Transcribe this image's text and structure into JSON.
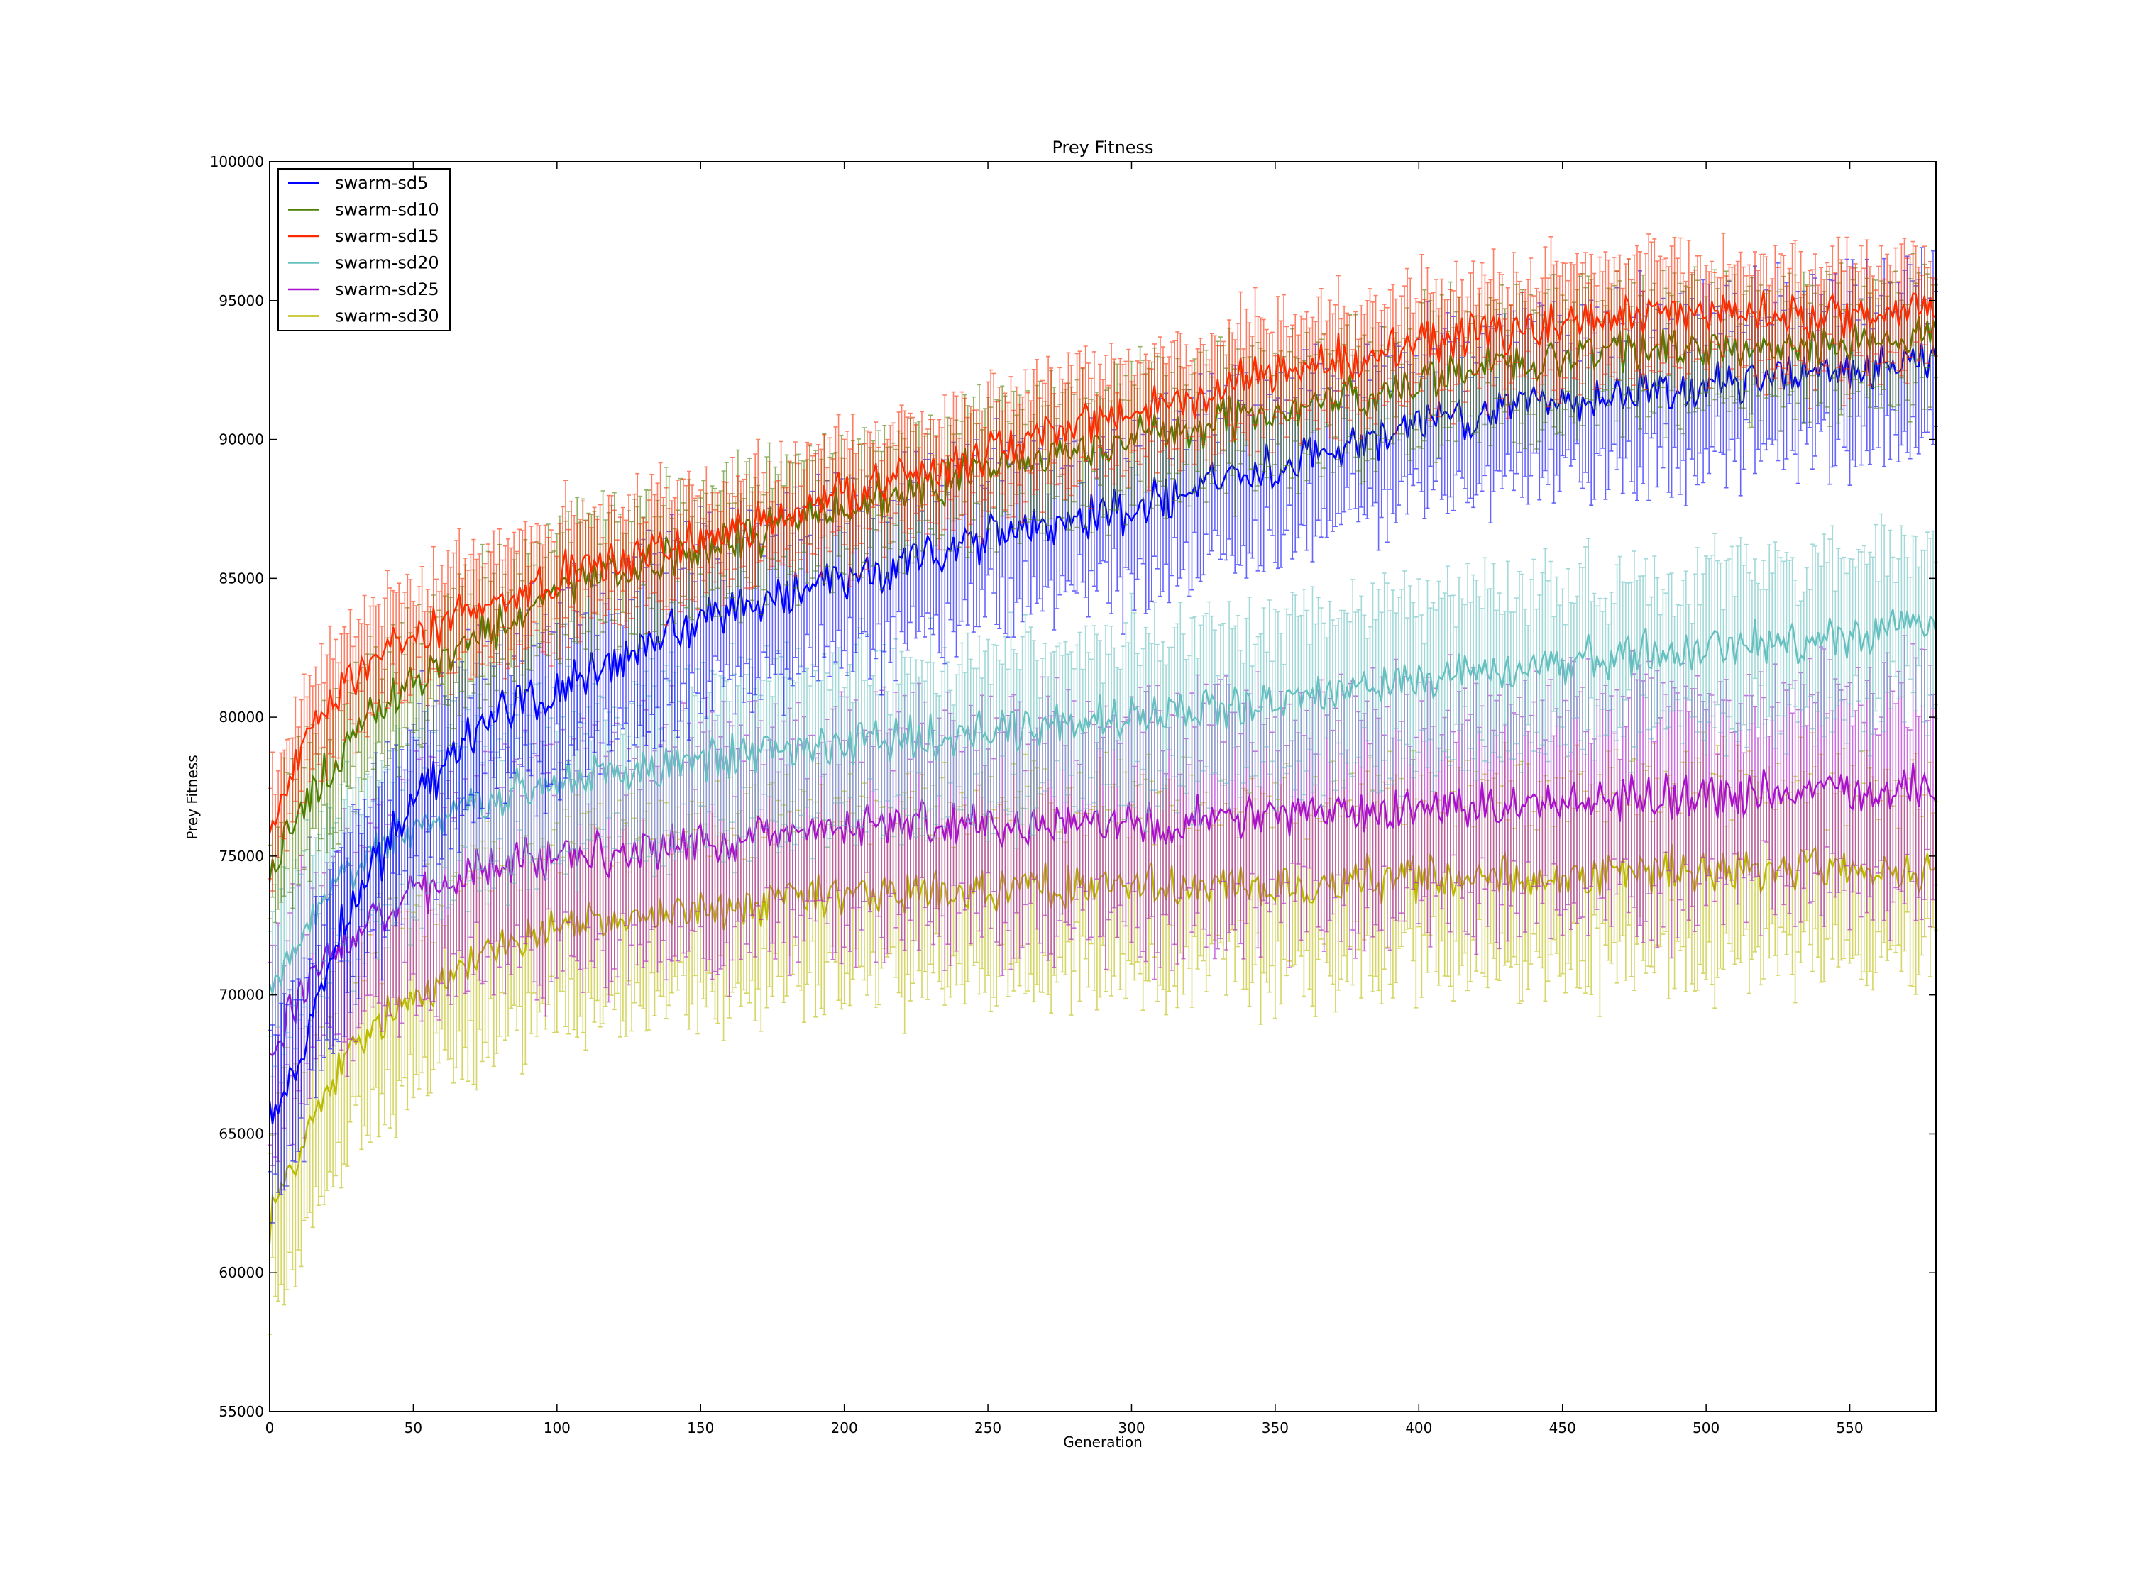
{
  "chart_data": {
    "type": "line",
    "title": "Prey Fitness",
    "xlabel": "Generation",
    "ylabel": "Prey Fitness",
    "xlim": [
      0,
      580
    ],
    "ylim": [
      55000,
      100000
    ],
    "xticks": [
      "0",
      "50",
      "100",
      "150",
      "200",
      "250",
      "300",
      "350",
      "400",
      "450",
      "500",
      "550"
    ],
    "yticks": [
      "55000",
      "60000",
      "65000",
      "70000",
      "75000",
      "80000",
      "85000",
      "90000",
      "95000",
      "100000"
    ],
    "grid": false,
    "legend_position": "upper-left",
    "error_bars": true,
    "sample_generations": [
      0,
      10,
      25,
      50,
      75,
      100,
      150,
      200,
      250,
      300,
      350,
      400,
      450,
      500,
      550,
      580
    ],
    "series": [
      {
        "name": "swarm-sd5",
        "color": "#0000ff",
        "values": [
          65500,
          67500,
          72500,
          77000,
          80000,
          81000,
          83500,
          85000,
          86500,
          87500,
          89000,
          90500,
          91500,
          92000,
          92500,
          93000
        ],
        "spread": 3000
      },
      {
        "name": "swarm-sd10",
        "color": "#4c7f00",
        "values": [
          74000,
          76500,
          79000,
          81500,
          83000,
          84500,
          86000,
          87500,
          89000,
          90000,
          91000,
          92000,
          93000,
          93300,
          93500,
          93800
        ],
        "spread": 2200
      },
      {
        "name": "swarm-sd15",
        "color": "#ff2a00",
        "values": [
          76000,
          78500,
          81000,
          83000,
          84000,
          85000,
          86500,
          88000,
          89500,
          91000,
          92500,
          93500,
          94200,
          94500,
          94500,
          94800
        ],
        "spread": 2000
      },
      {
        "name": "swarm-sd20",
        "color": "#66c0c0",
        "values": [
          70000,
          72000,
          74500,
          76000,
          77000,
          77500,
          78500,
          79000,
          79500,
          80000,
          80500,
          81500,
          82000,
          82500,
          83000,
          83500
        ],
        "spread": 3000
      },
      {
        "name": "swarm-sd25",
        "color": "#aa11cc",
        "values": [
          68000,
          70000,
          72000,
          73500,
          74500,
          75000,
          75500,
          76000,
          76200,
          76300,
          76500,
          76700,
          77000,
          77200,
          77300,
          77500
        ],
        "spread": 4000
      },
      {
        "name": "swarm-sd30",
        "color": "#bbbb00",
        "values": [
          62000,
          64500,
          67500,
          70000,
          71500,
          72500,
          73000,
          73500,
          73800,
          74000,
          74000,
          74200,
          74300,
          74500,
          74500,
          74500
        ],
        "spread": 3500
      }
    ]
  }
}
